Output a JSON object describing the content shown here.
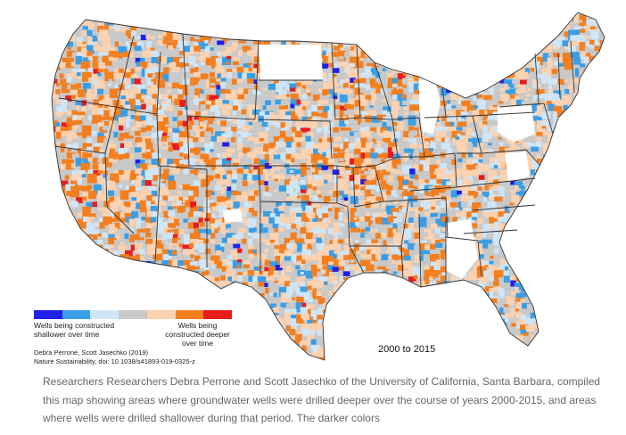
{
  "legend": {
    "colors": [
      "#2020e8",
      "#3a9ee6",
      "#cfe6f8",
      "#c9c9c9",
      "#fcd2b0",
      "#f47f1f",
      "#e81c1c"
    ],
    "shallower_label": "Wells being constructed shallower over time",
    "deeper_label": "Wells being constructed deeper over time"
  },
  "credit": {
    "authors": "Debra Perrone, Scott Jasechko (2019)",
    "journal": "Nature Sustainability, doi: 10.1038/s41893-019-0325-z"
  },
  "period": "2000 to 2015",
  "caption": "Researchers Researchers Debra Perrone and Scott Jasechko of the University of California, Santa Barbara, compiled this map showing areas where groundwater wells were drilled deeper over the course of years 2000-2015, and areas where wells were drilled shallower during that period. The darker colors",
  "map": {
    "land_color": "#c9c9c9",
    "no_data_color": "#ffffff",
    "border_color": "#333333"
  }
}
